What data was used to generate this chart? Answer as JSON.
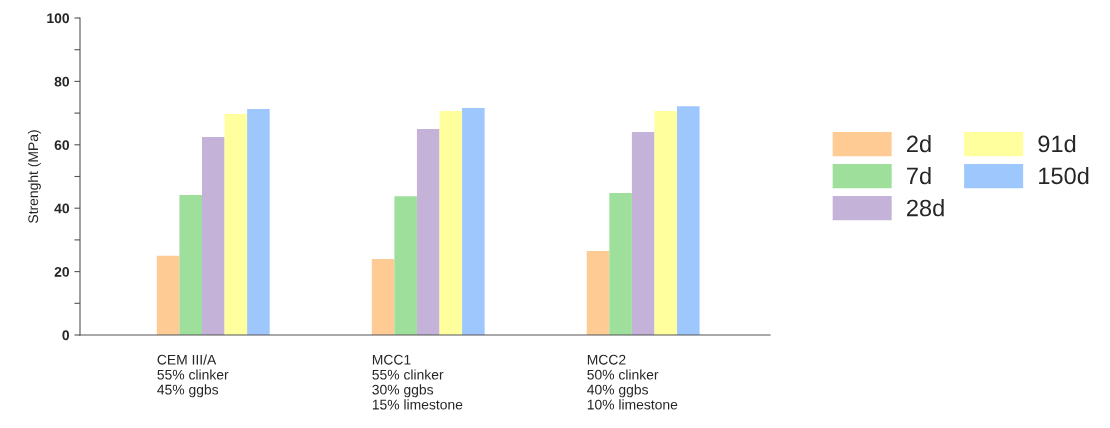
{
  "chart_data": {
    "type": "bar",
    "ylabel": "Strenght (MPa)",
    "categories": [
      "CEM III/A\n55% clinker\n45% ggbs",
      "MCC1\n55% clinker\n30% ggbs\n15% limestone",
      "MCC2\n50% clinker\n40% ggbs\n10% limestone"
    ],
    "series": [
      {
        "name": "2d",
        "color": "#fdcb93",
        "values": [
          25,
          24,
          26.5
        ]
      },
      {
        "name": "7d",
        "color": "#9ddf9b",
        "values": [
          44.2,
          43.8,
          44.8
        ]
      },
      {
        "name": "28d",
        "color": "#c5b2d8",
        "values": [
          62.5,
          65,
          64
        ]
      },
      {
        "name": "91d",
        "color": "#ffff9e",
        "values": [
          69.7,
          70.7,
          70.7
        ]
      },
      {
        "name": "150d",
        "color": "#9ec7fd",
        "values": [
          71.3,
          71.6,
          72.2
        ]
      }
    ],
    "ylim": [
      0,
      100
    ],
    "yticks": [
      0,
      {
        "value": 10,
        "label": null
      },
      20,
      {
        "value": 30,
        "label": null
      },
      40,
      {
        "value": 50,
        "label": null
      },
      60,
      {
        "value": 70,
        "label": null
      },
      80,
      {
        "value": 90,
        "label": null
      },
      100
    ],
    "grid": false,
    "legend": "right"
  }
}
